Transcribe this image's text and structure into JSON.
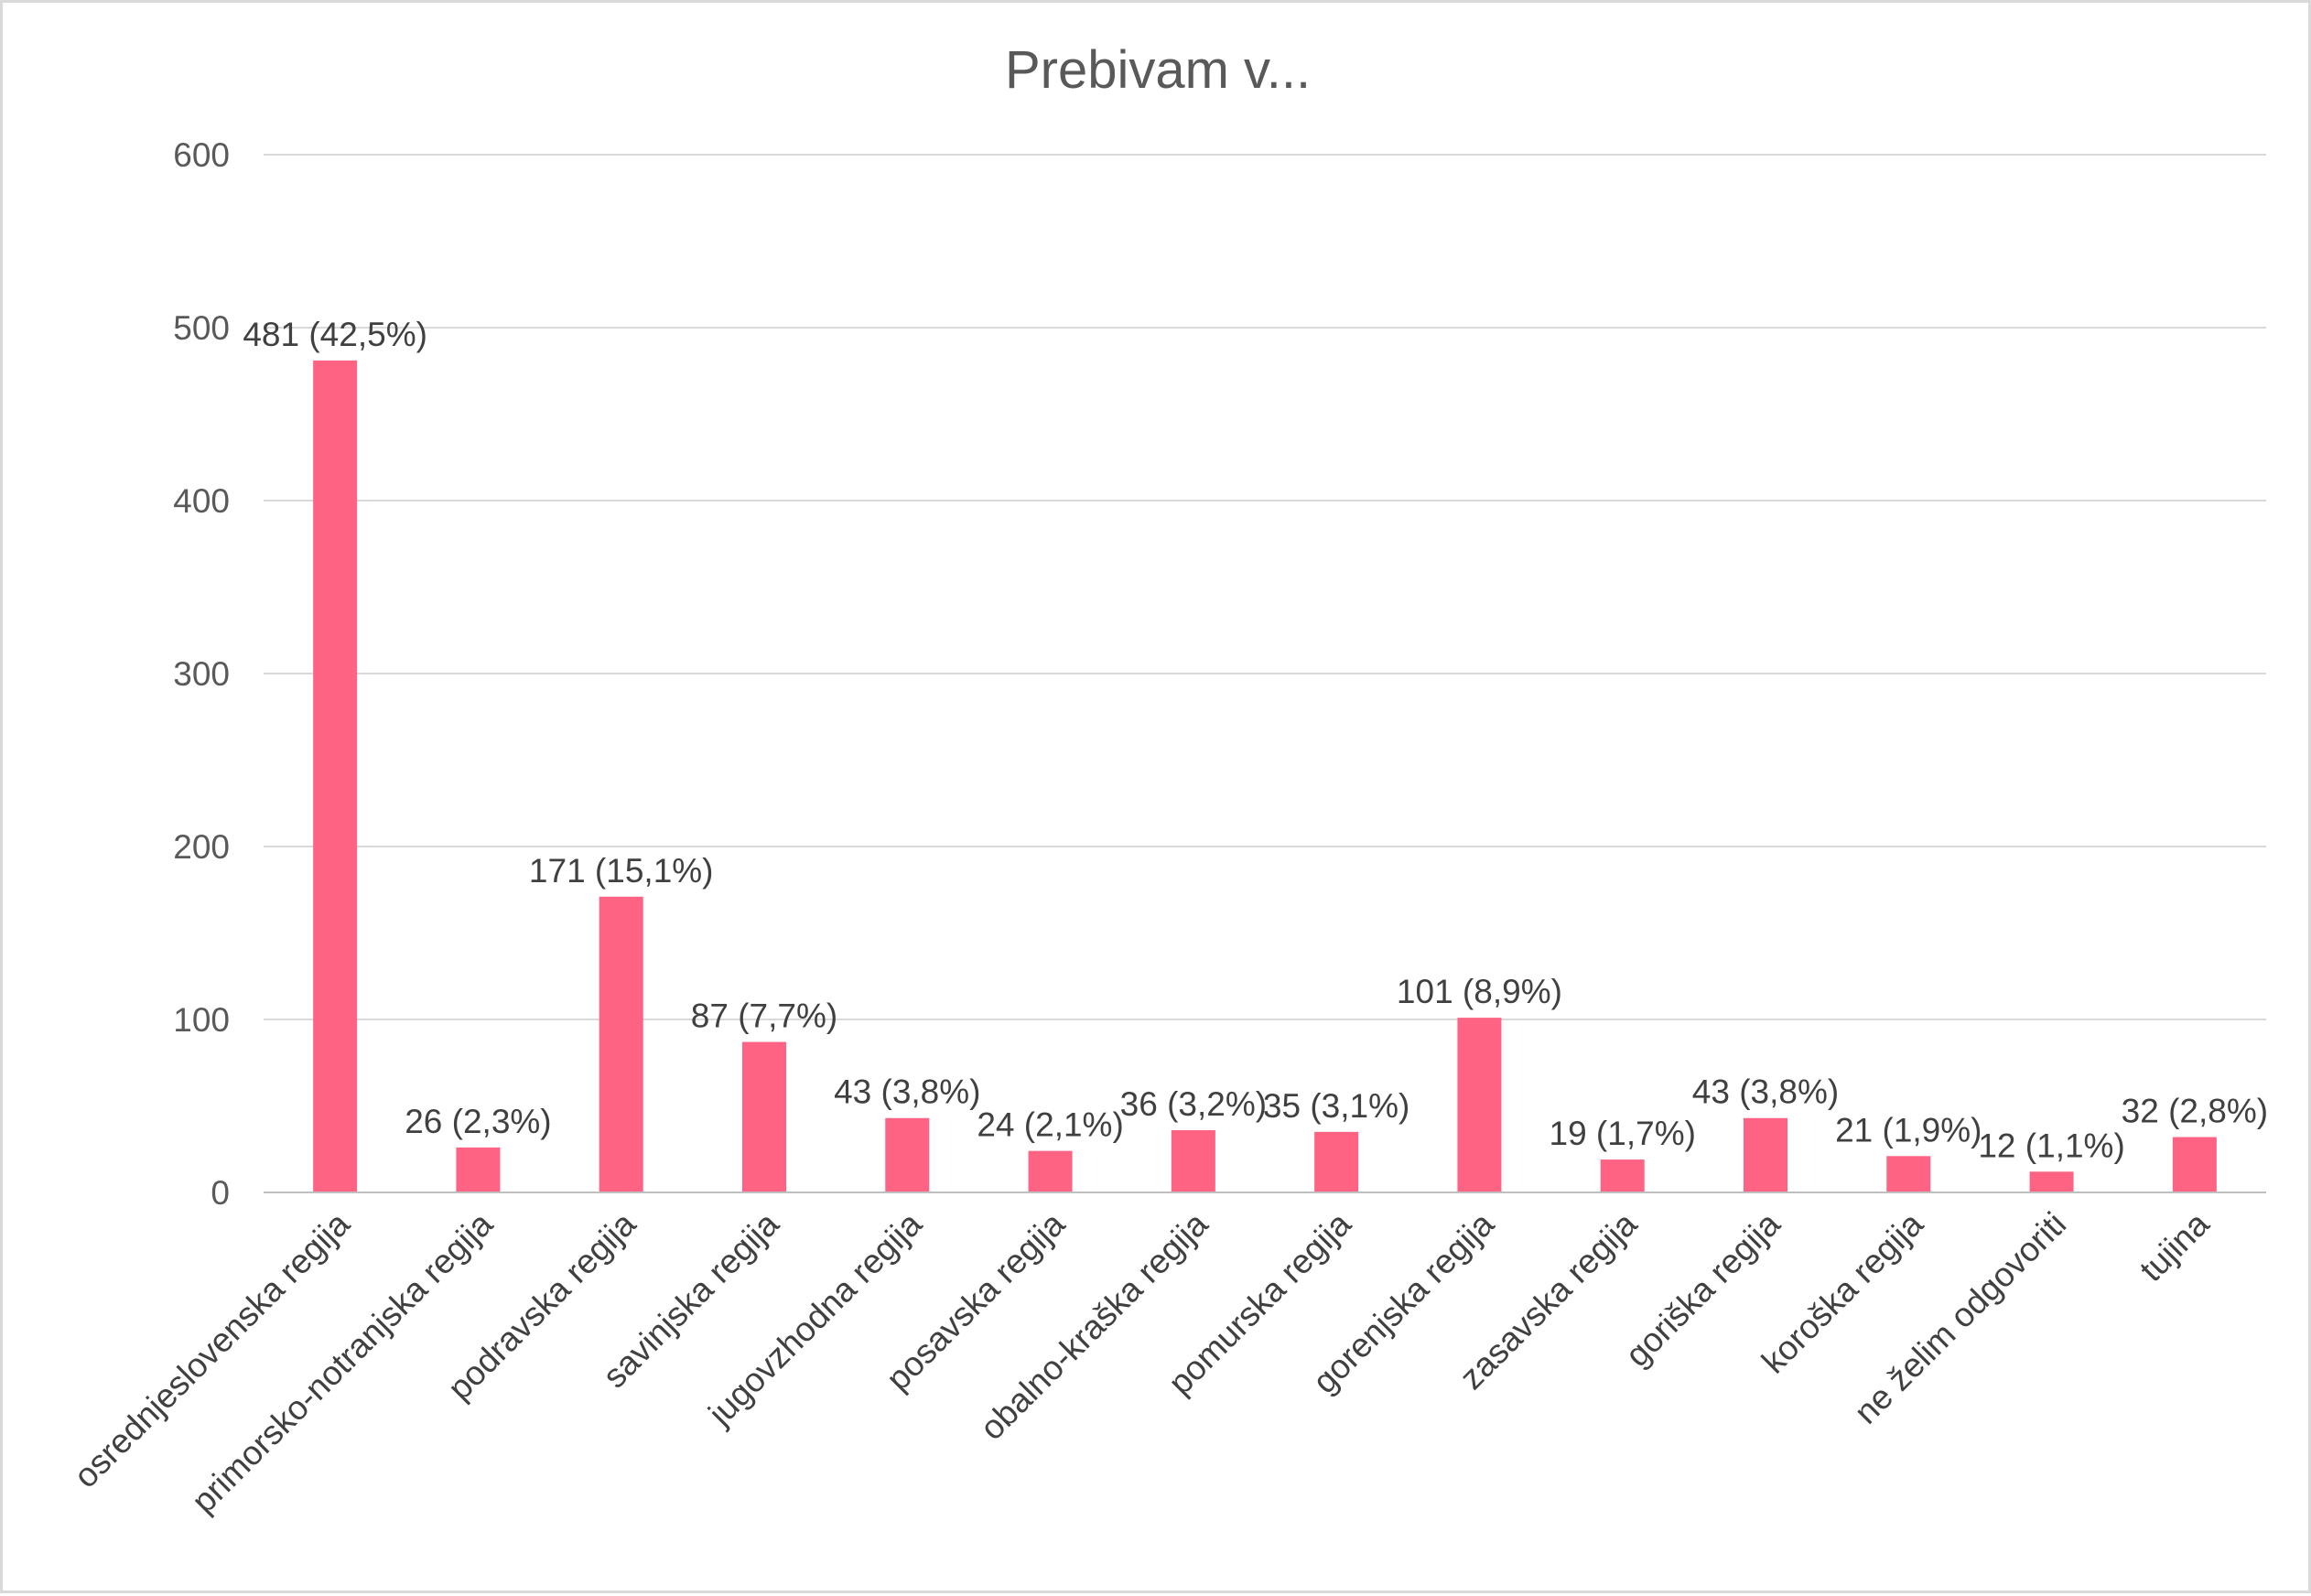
{
  "chart_data": {
    "type": "bar",
    "title": "Prebivam v...",
    "xlabel": "",
    "ylabel": "",
    "ylim": [
      0,
      600
    ],
    "y_ticks": [
      0,
      100,
      200,
      300,
      400,
      500,
      600
    ],
    "grid": true,
    "legend": "none",
    "bar_color": "#ff6384",
    "categories": [
      "osrednjeslovenska regija",
      "primorsko-notranjska regija",
      "podravska regija",
      "savinjska regija",
      "jugovzhodna regija",
      "posavska regija",
      "obalno-kraška regija",
      "pomurska regija",
      "gorenjska regija",
      "zasavska regija",
      "goriška regija",
      "koroška regija",
      "ne želim odgovoriti",
      "tujina"
    ],
    "values": [
      481,
      26,
      171,
      87,
      43,
      24,
      36,
      35,
      101,
      19,
      43,
      21,
      12,
      32
    ],
    "data_labels": [
      "481 (42,5%)",
      "26 (2,3%)",
      "171 (15,1%)",
      "87 (7,7%)",
      "43 (3,8%)",
      "24 (2,1%)",
      "36 (3,2%)",
      "35 (3,1%)",
      "101 (8,9%)",
      "19 (1,7%)",
      "43 (3,8%)",
      "21 (1,9%)",
      "12 (1,1%)",
      "32 (2,8%)"
    ]
  }
}
